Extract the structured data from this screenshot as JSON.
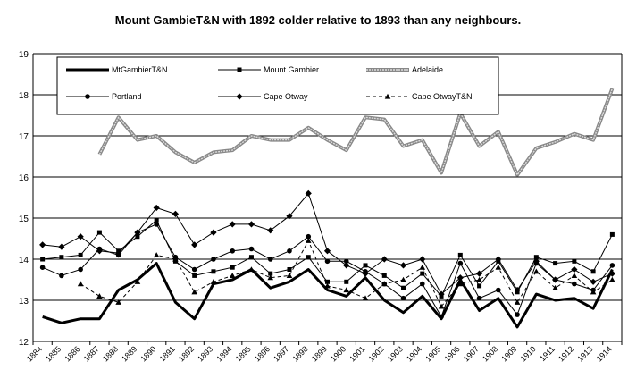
{
  "chart_data": {
    "type": "line",
    "title": "Mount GambieT&N with 1892 colder relative to 1893 than any neighbours.",
    "xlabel": "",
    "ylabel": "",
    "ylim": [
      12,
      19
    ],
    "yticks": [
      12,
      13,
      14,
      15,
      16,
      17,
      18,
      19
    ],
    "categories": [
      "1884",
      "1885",
      "1886",
      "1887",
      "1888",
      "1889",
      "1890",
      "1891",
      "1892",
      "1893",
      "1894",
      "1895",
      "1896",
      "1897",
      "1898",
      "1899",
      "1900",
      "1901",
      "1902",
      "1903",
      "1904",
      "1905",
      "1906",
      "1907",
      "1908",
      "1909",
      "1910",
      "1911",
      "1912",
      "1913",
      "1914"
    ],
    "grid": "horizontal",
    "legend_position": "top",
    "series": [
      {
        "name": "MtGambierT&N",
        "style": "thick",
        "color": "#000000",
        "values": [
          12.6,
          12.45,
          12.55,
          12.55,
          13.25,
          13.5,
          13.9,
          12.95,
          12.55,
          13.4,
          13.5,
          13.75,
          13.3,
          13.45,
          13.75,
          13.25,
          13.1,
          13.55,
          13.0,
          12.7,
          13.1,
          12.55,
          13.5,
          12.75,
          13.05,
          12.35,
          13.15,
          13.0,
          13.05,
          12.8,
          13.75
        ]
      },
      {
        "name": "Mount Gambier",
        "style": "square",
        "color": "#000000",
        "values": [
          14.0,
          14.05,
          14.1,
          14.65,
          14.2,
          14.55,
          14.95,
          13.95,
          13.6,
          13.7,
          13.8,
          14.05,
          13.65,
          13.75,
          14.05,
          13.45,
          13.45,
          13.85,
          13.6,
          13.3,
          13.65,
          13.1,
          14.1,
          13.35,
          13.95,
          13.2,
          14.05,
          13.9,
          13.95,
          13.7,
          14.6
        ]
      },
      {
        "name": "Adelaide",
        "style": "double",
        "color": "#808080",
        "values": [
          null,
          null,
          null,
          16.55,
          17.45,
          16.9,
          17.0,
          16.6,
          16.35,
          16.6,
          16.65,
          17.0,
          16.9,
          16.9,
          17.2,
          16.9,
          16.65,
          17.45,
          17.4,
          16.75,
          16.9,
          16.1,
          17.55,
          16.75,
          17.1,
          16.05,
          16.7,
          16.85,
          17.05,
          16.9,
          18.15
        ]
      },
      {
        "name": "Portland",
        "style": "circle",
        "color": "#000000",
        "values": [
          13.8,
          13.6,
          13.75,
          14.25,
          14.1,
          14.65,
          14.85,
          14.05,
          13.75,
          14.0,
          14.2,
          14.25,
          14.0,
          14.2,
          14.55,
          13.95,
          13.95,
          13.7,
          13.4,
          13.05,
          13.4,
          12.6,
          13.9,
          13.05,
          13.25,
          12.65,
          13.9,
          13.5,
          13.4,
          13.25,
          13.85
        ]
      },
      {
        "name": "Cape Otway",
        "style": "diamond",
        "color": "#000000",
        "values": [
          14.35,
          14.3,
          14.55,
          14.2,
          14.15,
          14.65,
          15.25,
          15.1,
          14.35,
          14.65,
          14.85,
          14.85,
          14.7,
          15.05,
          15.6,
          14.2,
          13.85,
          13.65,
          14.0,
          13.85,
          14.0,
          13.15,
          13.55,
          13.65,
          14.0,
          13.25,
          13.95,
          13.5,
          13.75,
          13.45,
          13.65
        ]
      },
      {
        "name": "Cape OtwayT&N",
        "style": "dashed-triangle",
        "color": "#000000",
        "values": [
          null,
          null,
          13.4,
          13.1,
          12.95,
          13.45,
          14.1,
          14.0,
          13.2,
          13.45,
          13.6,
          13.75,
          13.55,
          13.6,
          14.45,
          13.35,
          13.25,
          13.05,
          13.4,
          13.5,
          13.8,
          12.85,
          13.4,
          13.5,
          13.8,
          12.95,
          13.7,
          13.3,
          13.6,
          13.2,
          13.5
        ]
      }
    ]
  }
}
